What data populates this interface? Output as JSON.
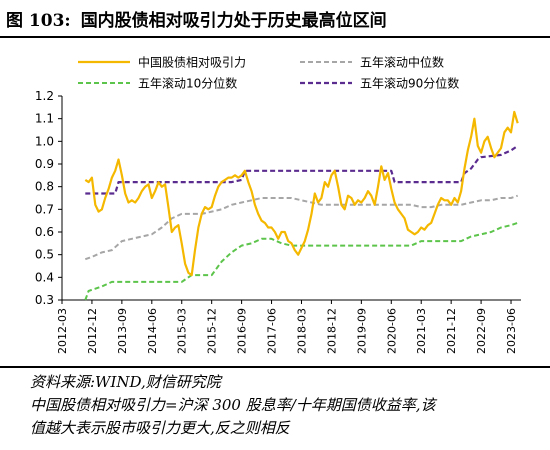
{
  "title": {
    "number": "图 103:",
    "text": "国内股债相对吸引力处于历史最高位区间"
  },
  "notes": {
    "source": "资料来源:WIND,财信研究院",
    "definition_line1": "中国股债相对吸引力=沪深 300 股息率/十年期国债收益率,该",
    "definition_line2": "值越大表示股市吸引力更大,反之则相反"
  },
  "chart_data": {
    "type": "line",
    "title": "",
    "xlabel": "",
    "ylabel": "",
    "ylim": [
      0.3,
      1.2
    ],
    "yticks": [
      "1.2",
      "1.1",
      "1.0",
      "0.9",
      "0.8",
      "0.7",
      "0.6",
      "0.5",
      "0.4",
      "0.3"
    ],
    "xticks": [
      "2012-03",
      "2012-12",
      "2013-09",
      "2014-06",
      "2015-03",
      "2015-12",
      "2016-09",
      "2017-06",
      "2018-03",
      "2018-12",
      "2019-09",
      "2020-06",
      "2021-03",
      "2021-12",
      "2022-09",
      "2023-06"
    ],
    "legend": "top",
    "grid": false,
    "colors": {
      "main": "#F5B800",
      "median": "#A6A6A6",
      "p10": "#5CC44A",
      "p90": "#5B2C8F"
    },
    "series": [
      {
        "name": "中国股债相对吸引力",
        "style": "solid",
        "points": [
          [
            "2012-10",
            0.83
          ],
          [
            "2012-11",
            0.82
          ],
          [
            "2012-12",
            0.84
          ],
          [
            "2013-01",
            0.72
          ],
          [
            "2013-02",
            0.69
          ],
          [
            "2013-03",
            0.7
          ],
          [
            "2013-04",
            0.75
          ],
          [
            "2013-05",
            0.79
          ],
          [
            "2013-06",
            0.84
          ],
          [
            "2013-07",
            0.87
          ],
          [
            "2013-08",
            0.92
          ],
          [
            "2013-09",
            0.85
          ],
          [
            "2013-10",
            0.77
          ],
          [
            "2013-11",
            0.73
          ],
          [
            "2013-12",
            0.74
          ],
          [
            "2014-01",
            0.73
          ],
          [
            "2014-02",
            0.75
          ],
          [
            "2014-03",
            0.78
          ],
          [
            "2014-04",
            0.8
          ],
          [
            "2014-05",
            0.81
          ],
          [
            "2014-06",
            0.75
          ],
          [
            "2014-07",
            0.78
          ],
          [
            "2014-08",
            0.82
          ],
          [
            "2014-09",
            0.8
          ],
          [
            "2014-10",
            0.81
          ],
          [
            "2014-11",
            0.71
          ],
          [
            "2014-12",
            0.6
          ],
          [
            "2015-01",
            0.62
          ],
          [
            "2015-02",
            0.63
          ],
          [
            "2015-03",
            0.55
          ],
          [
            "2015-04",
            0.46
          ],
          [
            "2015-05",
            0.42
          ],
          [
            "2015-06",
            0.41
          ],
          [
            "2015-07",
            0.52
          ],
          [
            "2015-08",
            0.62
          ],
          [
            "2015-09",
            0.68
          ],
          [
            "2015-10",
            0.71
          ],
          [
            "2015-11",
            0.7
          ],
          [
            "2015-12",
            0.71
          ],
          [
            "2016-01",
            0.76
          ],
          [
            "2016-02",
            0.8
          ],
          [
            "2016-03",
            0.82
          ],
          [
            "2016-04",
            0.83
          ],
          [
            "2016-05",
            0.84
          ],
          [
            "2016-06",
            0.84
          ],
          [
            "2016-07",
            0.85
          ],
          [
            "2016-08",
            0.84
          ],
          [
            "2016-09",
            0.85
          ],
          [
            "2016-10",
            0.87
          ],
          [
            "2016-11",
            0.82
          ],
          [
            "2016-12",
            0.78
          ],
          [
            "2017-01",
            0.72
          ],
          [
            "2017-02",
            0.68
          ],
          [
            "2017-03",
            0.65
          ],
          [
            "2017-04",
            0.64
          ],
          [
            "2017-05",
            0.62
          ],
          [
            "2017-06",
            0.62
          ],
          [
            "2017-07",
            0.6
          ],
          [
            "2017-08",
            0.57
          ],
          [
            "2017-09",
            0.6
          ],
          [
            "2017-10",
            0.6
          ],
          [
            "2017-11",
            0.56
          ],
          [
            "2017-12",
            0.55
          ],
          [
            "2018-01",
            0.52
          ],
          [
            "2018-02",
            0.5
          ],
          [
            "2018-03",
            0.53
          ],
          [
            "2018-04",
            0.56
          ],
          [
            "2018-05",
            0.61
          ],
          [
            "2018-06",
            0.68
          ],
          [
            "2018-07",
            0.77
          ],
          [
            "2018-08",
            0.73
          ],
          [
            "2018-09",
            0.75
          ],
          [
            "2018-10",
            0.82
          ],
          [
            "2018-11",
            0.8
          ],
          [
            "2018-12",
            0.85
          ],
          [
            "2019-01",
            0.87
          ],
          [
            "2019-02",
            0.8
          ],
          [
            "2019-03",
            0.72
          ],
          [
            "2019-04",
            0.7
          ],
          [
            "2019-05",
            0.76
          ],
          [
            "2019-06",
            0.75
          ],
          [
            "2019-07",
            0.72
          ],
          [
            "2019-08",
            0.74
          ],
          [
            "2019-09",
            0.73
          ],
          [
            "2019-10",
            0.75
          ],
          [
            "2019-11",
            0.78
          ],
          [
            "2019-12",
            0.76
          ],
          [
            "2020-01",
            0.72
          ],
          [
            "2020-02",
            0.8
          ],
          [
            "2020-03",
            0.89
          ],
          [
            "2020-04",
            0.83
          ],
          [
            "2020-05",
            0.86
          ],
          [
            "2020-06",
            0.79
          ],
          [
            "2020-07",
            0.73
          ],
          [
            "2020-08",
            0.7
          ],
          [
            "2020-09",
            0.68
          ],
          [
            "2020-10",
            0.66
          ],
          [
            "2020-11",
            0.61
          ],
          [
            "2020-12",
            0.6
          ],
          [
            "2021-01",
            0.59
          ],
          [
            "2021-02",
            0.6
          ],
          [
            "2021-03",
            0.62
          ],
          [
            "2021-04",
            0.61
          ],
          [
            "2021-05",
            0.63
          ],
          [
            "2021-06",
            0.64
          ],
          [
            "2021-07",
            0.68
          ],
          [
            "2021-08",
            0.72
          ],
          [
            "2021-09",
            0.75
          ],
          [
            "2021-10",
            0.74
          ],
          [
            "2021-11",
            0.74
          ],
          [
            "2021-12",
            0.72
          ],
          [
            "2022-01",
            0.75
          ],
          [
            "2022-02",
            0.73
          ],
          [
            "2022-03",
            0.78
          ],
          [
            "2022-04",
            0.88
          ],
          [
            "2022-05",
            0.96
          ],
          [
            "2022-06",
            1.02
          ],
          [
            "2022-07",
            1.1
          ],
          [
            "2022-08",
            0.98
          ],
          [
            "2022-09",
            0.95
          ],
          [
            "2022-10",
            1.0
          ],
          [
            "2022-11",
            1.02
          ],
          [
            "2022-12",
            0.97
          ],
          [
            "2023-01",
            0.93
          ],
          [
            "2023-02",
            0.95
          ],
          [
            "2023-03",
            0.97
          ],
          [
            "2023-04",
            1.04
          ],
          [
            "2023-05",
            1.06
          ],
          [
            "2023-06",
            1.04
          ],
          [
            "2023-07",
            1.13
          ],
          [
            "2023-08",
            1.08
          ]
        ]
      },
      {
        "name": "五年滚动中位数",
        "style": "dashed",
        "points": [
          [
            "2012-10",
            0.48
          ],
          [
            "2012-12",
            0.49
          ],
          [
            "2013-03",
            0.51
          ],
          [
            "2013-06",
            0.52
          ],
          [
            "2013-09",
            0.56
          ],
          [
            "2013-12",
            0.57
          ],
          [
            "2014-03",
            0.58
          ],
          [
            "2014-06",
            0.59
          ],
          [
            "2014-09",
            0.62
          ],
          [
            "2014-12",
            0.66
          ],
          [
            "2015-03",
            0.68
          ],
          [
            "2015-06",
            0.68
          ],
          [
            "2015-09",
            0.68
          ],
          [
            "2015-12",
            0.69
          ],
          [
            "2016-03",
            0.7
          ],
          [
            "2016-06",
            0.72
          ],
          [
            "2016-09",
            0.73
          ],
          [
            "2016-12",
            0.74
          ],
          [
            "2017-03",
            0.75
          ],
          [
            "2017-06",
            0.75
          ],
          [
            "2017-09",
            0.75
          ],
          [
            "2017-12",
            0.75
          ],
          [
            "2018-03",
            0.74
          ],
          [
            "2018-06",
            0.73
          ],
          [
            "2018-09",
            0.72
          ],
          [
            "2018-12",
            0.72
          ],
          [
            "2019-03",
            0.72
          ],
          [
            "2019-06",
            0.72
          ],
          [
            "2019-09",
            0.72
          ],
          [
            "2019-12",
            0.72
          ],
          [
            "2020-03",
            0.72
          ],
          [
            "2020-06",
            0.72
          ],
          [
            "2020-09",
            0.72
          ],
          [
            "2020-12",
            0.72
          ],
          [
            "2021-03",
            0.71
          ],
          [
            "2021-06",
            0.71
          ],
          [
            "2021-09",
            0.72
          ],
          [
            "2021-12",
            0.72
          ],
          [
            "2022-03",
            0.72
          ],
          [
            "2022-06",
            0.73
          ],
          [
            "2022-09",
            0.74
          ],
          [
            "2022-12",
            0.74
          ],
          [
            "2023-03",
            0.75
          ],
          [
            "2023-06",
            0.75
          ],
          [
            "2023-08",
            0.76
          ]
        ]
      },
      {
        "name": "五年滚动10分位数",
        "style": "dashed",
        "points": [
          [
            "2012-10",
            0.3
          ],
          [
            "2012-11",
            0.34
          ],
          [
            "2013-01",
            0.35
          ],
          [
            "2013-03",
            0.36
          ],
          [
            "2013-06",
            0.38
          ],
          [
            "2015-03",
            0.38
          ],
          [
            "2015-06",
            0.41
          ],
          [
            "2015-12",
            0.41
          ],
          [
            "2016-03",
            0.47
          ],
          [
            "2016-06",
            0.51
          ],
          [
            "2016-09",
            0.54
          ],
          [
            "2016-12",
            0.55
          ],
          [
            "2017-03",
            0.57
          ],
          [
            "2017-06",
            0.57
          ],
          [
            "2017-09",
            0.55
          ],
          [
            "2017-12",
            0.54
          ],
          [
            "2020-12",
            0.54
          ],
          [
            "2021-03",
            0.56
          ],
          [
            "2022-03",
            0.56
          ],
          [
            "2022-06",
            0.58
          ],
          [
            "2022-09",
            0.59
          ],
          [
            "2022-12",
            0.6
          ],
          [
            "2023-03",
            0.62
          ],
          [
            "2023-06",
            0.63
          ],
          [
            "2023-08",
            0.64
          ]
        ]
      },
      {
        "name": "五年滚动90分位数",
        "style": "dashed",
        "points": [
          [
            "2012-10",
            0.77
          ],
          [
            "2013-01",
            0.77
          ],
          [
            "2013-04",
            0.77
          ],
          [
            "2013-07",
            0.77
          ],
          [
            "2013-08",
            0.82
          ],
          [
            "2016-06",
            0.82
          ],
          [
            "2016-09",
            0.83
          ],
          [
            "2016-10",
            0.87
          ],
          [
            "2020-06",
            0.87
          ],
          [
            "2020-07",
            0.82
          ],
          [
            "2022-03",
            0.82
          ],
          [
            "2022-04",
            0.86
          ],
          [
            "2022-06",
            0.88
          ],
          [
            "2022-08",
            0.92
          ],
          [
            "2022-09",
            0.93
          ],
          [
            "2023-03",
            0.94
          ],
          [
            "2023-06",
            0.96
          ],
          [
            "2023-08",
            0.98
          ]
        ]
      }
    ]
  }
}
